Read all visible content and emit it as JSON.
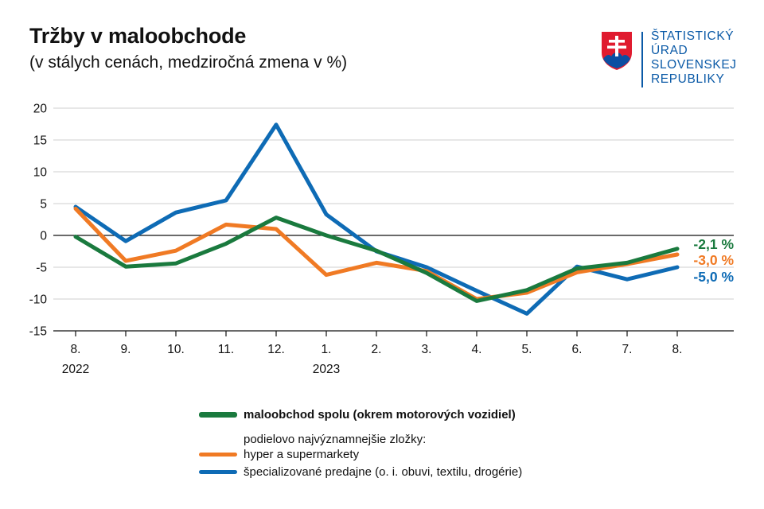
{
  "header": {
    "title": "Tržby v maloobchode",
    "subtitle": "(v stálych cenách, medziročná zmena v %)"
  },
  "logo": {
    "lines": [
      "ŠTATISTICKÝ",
      "ÚRAD",
      "SLOVENSKEJ",
      "REPUBLIKY"
    ],
    "brand_color": "#0b5aa7"
  },
  "legend": {
    "note": "podielovo najvýznamnejšie zložky:"
  },
  "chart_data": {
    "type": "line",
    "categories": [
      "8.",
      "9.",
      "10.",
      "11.",
      "12.",
      "1.",
      "2.",
      "3.",
      "4.",
      "5.",
      "6.",
      "7.",
      "8."
    ],
    "year_labels": [
      {
        "index": 0,
        "label": "2022"
      },
      {
        "index": 5,
        "label": "2023"
      }
    ],
    "ylim": [
      -15,
      20
    ],
    "yticks": [
      -15,
      -10,
      -5,
      0,
      5,
      10,
      15,
      20
    ],
    "grid": true,
    "legend_position": "bottom",
    "series": [
      {
        "name": "maloobchod spolu (okrem motorových vozidiel)",
        "color": "#1a7a3e",
        "values": [
          -0.2,
          -4.9,
          -4.4,
          -1.3,
          2.8,
          0.0,
          -2.4,
          -5.9,
          -10.3,
          -8.6,
          -5.2,
          -4.3,
          -2.1
        ],
        "end_label": "-2,1 %"
      },
      {
        "name": "hyper a supermarkety",
        "color": "#f07a24",
        "values": [
          4.2,
          -4.0,
          -2.4,
          1.7,
          1.0,
          -6.2,
          -4.3,
          -5.6,
          -10.0,
          -9.0,
          -5.8,
          -4.5,
          -3.0
        ],
        "end_label": "-3,0 %"
      },
      {
        "name": "špecializované predajne (o. i. obuvi, textilu, drogérie)",
        "color": "#0e6bb5",
        "values": [
          4.5,
          -0.9,
          3.6,
          5.5,
          17.4,
          3.3,
          -2.5,
          -5.0,
          -8.7,
          -12.3,
          -4.9,
          -6.9,
          -5.0
        ],
        "end_label": "-5,0 %"
      }
    ]
  }
}
